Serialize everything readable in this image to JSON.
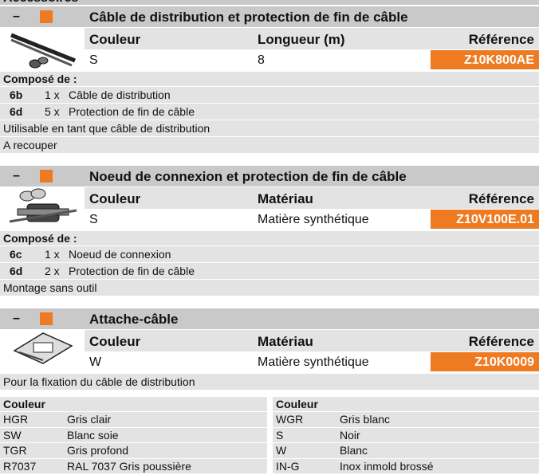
{
  "header": {
    "title": "Accessoires"
  },
  "sections": [
    {
      "collapse": "–",
      "title": "Câble de distribution et protection de fin de câble",
      "columns": [
        "Couleur",
        "Longueur (m)",
        "Référence"
      ],
      "row": [
        "S",
        "8",
        "Z10K800AE"
      ],
      "composition_title": "Composé de :",
      "composition": [
        {
          "code": "6b",
          "qty": "1 x",
          "label": "Câble de distribution"
        },
        {
          "code": "6d",
          "qty": "5 x",
          "label": "Protection de fin de câble"
        }
      ],
      "notes": [
        "Utilisable en tant que câble de distribution",
        "A recouper"
      ]
    },
    {
      "collapse": "–",
      "title": "Noeud de connexion et protection de fin de câble",
      "columns": [
        "Couleur",
        "Matériau",
        "Référence"
      ],
      "row": [
        "S",
        "Matière synthétique",
        "Z10V100E.01"
      ],
      "composition_title": "Composé de :",
      "composition": [
        {
          "code": "6c",
          "qty": "1 x",
          "label": "Noeud de connexion"
        },
        {
          "code": "6d",
          "qty": "2 x",
          "label": "Protection de fin de câble"
        }
      ],
      "notes": [
        "Montage sans outil"
      ]
    },
    {
      "collapse": "–",
      "title": "Attache-câble",
      "columns": [
        "Couleur",
        "Matériau",
        "Référence"
      ],
      "row": [
        "W",
        "Matière synthétique",
        "Z10K0009"
      ],
      "notes": [
        "Pour la fixation du câble de distribution"
      ]
    }
  ],
  "color_table": [
    {
      "header": "Couleur",
      "rows": [
        [
          "HGR",
          "Gris clair"
        ],
        [
          "SW",
          "Blanc soie"
        ],
        [
          "TGR",
          "Gris profond"
        ],
        [
          "R7037",
          "RAL 7037 Gris poussière"
        ]
      ]
    },
    {
      "header": "Couleur",
      "rows": [
        [
          "WGR",
          "Gris blanc"
        ],
        [
          "S",
          "Noir"
        ],
        [
          "W",
          "Blanc"
        ],
        [
          "IN-G",
          "Inox inmold brossé"
        ]
      ]
    }
  ]
}
